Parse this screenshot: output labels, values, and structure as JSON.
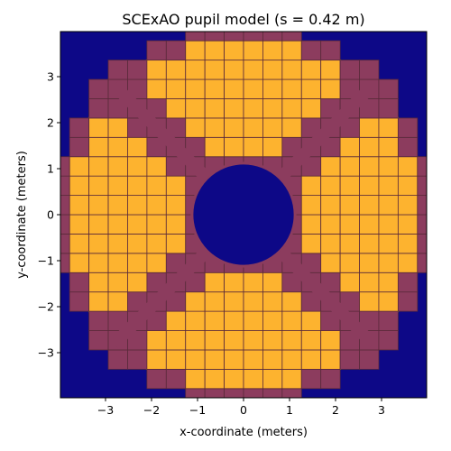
{
  "chart_data": {
    "type": "heatmap",
    "title": "SCExAO pupil model (s = 0.42 m)",
    "xlabel": "x-coordinate (meters)",
    "ylabel": "y-coordinate (meters)",
    "xlim": [
      -3.98,
      3.98
    ],
    "ylim": [
      -3.98,
      3.98
    ],
    "xticks": [
      -3,
      -2,
      -1,
      0,
      1,
      2,
      3
    ],
    "yticks": [
      -3,
      -2,
      -1,
      0,
      1,
      2,
      3
    ],
    "xtick_labels": [
      "−3",
      "−2",
      "−1",
      "0",
      "1",
      "2",
      "3"
    ],
    "ytick_labels": [
      "−3",
      "−2",
      "−1",
      "0",
      "1",
      "2",
      "3"
    ],
    "pupil": {
      "outer_radius_m": 3.98,
      "central_obstruction_radius_m": 1.12,
      "spider_width_m": 0.12,
      "spider_angles_deg": [
        45,
        135,
        225,
        315
      ],
      "subaperture_size_m": 0.42
    },
    "colors": {
      "background": "#0d0887",
      "pupil_full": "#fdb32f",
      "pupil_partial": "#8c3c5e",
      "grid_lines": "#5a2a3a",
      "edge_fill": "#f0f921"
    }
  }
}
